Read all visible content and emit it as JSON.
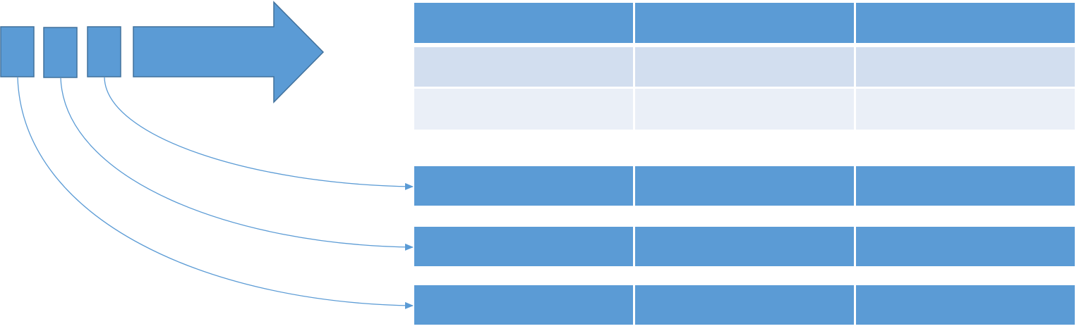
{
  "colors": {
    "block_fill": "#5b9bd5",
    "block_stroke": "#41719c",
    "header_cell": "#5b9bd5",
    "row_odd": "#d2deef",
    "row_even": "#eaeff7",
    "connector": "#5b9bd5",
    "background": "#ffffff"
  },
  "queue": {
    "blocks": [
      {
        "label": ""
      },
      {
        "label": ""
      },
      {
        "label": ""
      }
    ],
    "direction_arrow": {
      "icon": "right-arrow-icon"
    }
  },
  "main_table": {
    "columns": 3,
    "header": [
      "",
      "",
      ""
    ],
    "rows": [
      [
        "",
        "",
        ""
      ],
      [
        "",
        "",
        ""
      ]
    ]
  },
  "target_rows": [
    {
      "cells": [
        "",
        "",
        ""
      ]
    },
    {
      "cells": [
        "",
        "",
        ""
      ]
    },
    {
      "cells": [
        "",
        "",
        ""
      ]
    }
  ],
  "connections": [
    {
      "from_block": 2,
      "to_target_row": 0
    },
    {
      "from_block": 1,
      "to_target_row": 1
    },
    {
      "from_block": 0,
      "to_target_row": 2
    }
  ]
}
